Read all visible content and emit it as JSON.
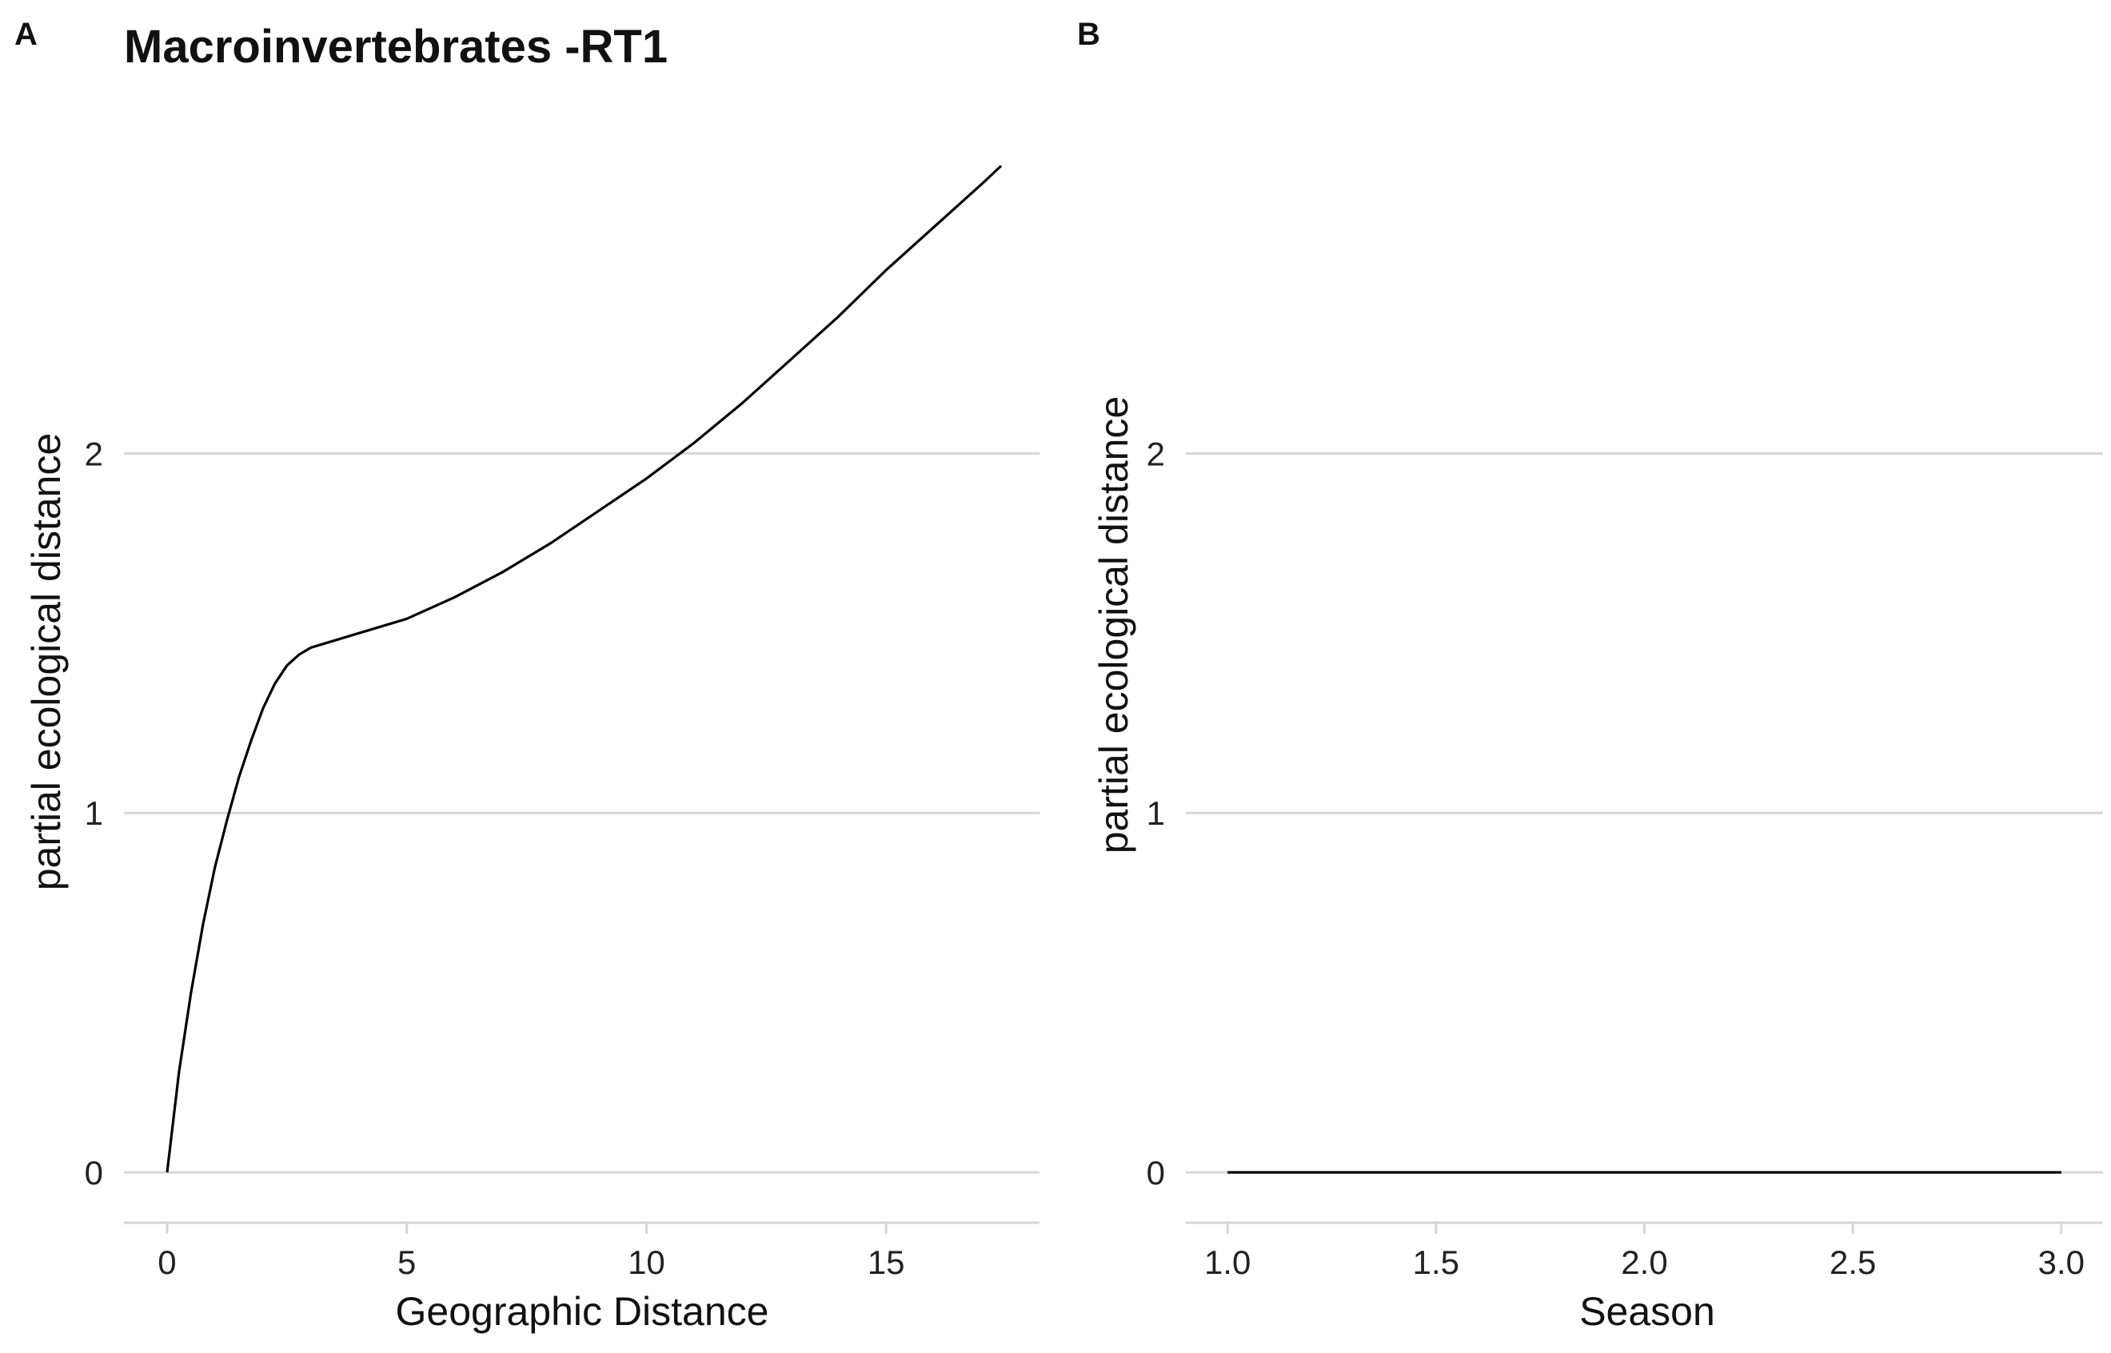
{
  "figure": {
    "title": "Macroinvertebrates -RT1",
    "panel_a_label": "A",
    "panel_b_label": "B"
  },
  "chart_data": [
    {
      "panel": "A",
      "type": "line",
      "xlabel": "Geographic Distance",
      "ylabel": "partial ecological distance",
      "xlim": [
        -0.9,
        18.2
      ],
      "ylim": [
        -0.14,
        2.85
      ],
      "xticks": [
        0,
        5,
        10,
        15
      ],
      "yticks": [
        0,
        1,
        2
      ],
      "grid": "horizontal",
      "series": [
        {
          "x": [
            0,
            0.25,
            0.5,
            0.75,
            1.0,
            1.25,
            1.5,
            1.75,
            2.0,
            2.25,
            2.5,
            2.75,
            3.0,
            3.5,
            4,
            5,
            6,
            7,
            8,
            9,
            10,
            11,
            12,
            13,
            14,
            15,
            16,
            17,
            17.4
          ],
          "y": [
            0,
            0.28,
            0.5,
            0.69,
            0.85,
            0.98,
            1.1,
            1.2,
            1.29,
            1.36,
            1.41,
            1.44,
            1.46,
            1.48,
            1.5,
            1.54,
            1.6,
            1.67,
            1.75,
            1.84,
            1.93,
            2.03,
            2.14,
            2.26,
            2.38,
            2.51,
            2.63,
            2.75,
            2.8
          ]
        }
      ]
    },
    {
      "panel": "B",
      "type": "line",
      "xlabel": "Season",
      "ylabel": "partial ecological distance",
      "xlim": [
        0.9,
        3.1
      ],
      "ylim": [
        -0.14,
        2.85
      ],
      "xticks": [
        1.0,
        1.5,
        2.0,
        2.5,
        3.0
      ],
      "yticks": [
        0,
        1,
        2
      ],
      "grid": "horizontal",
      "series": [
        {
          "x": [
            1.0,
            3.0
          ],
          "y": [
            0,
            0
          ]
        }
      ]
    }
  ]
}
